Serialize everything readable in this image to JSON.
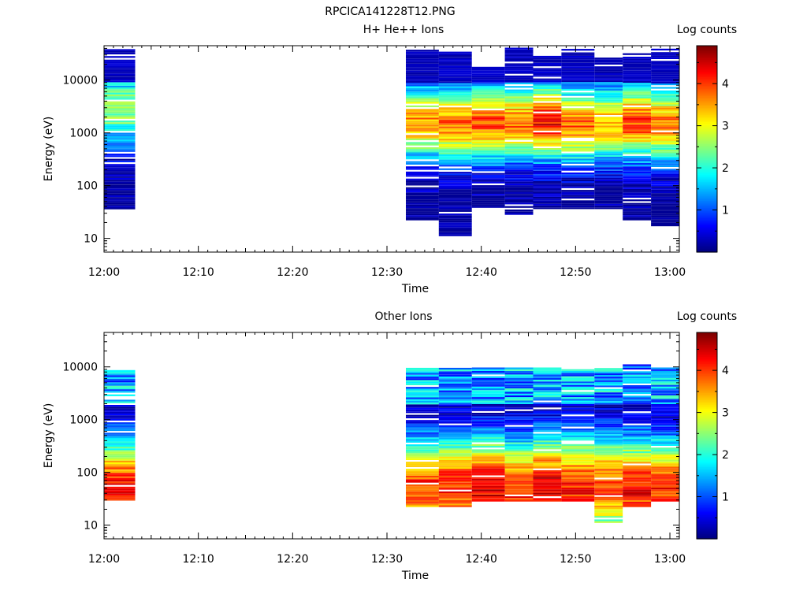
{
  "figure_title": "RPCICA141228T12.PNG",
  "chart_data": [
    {
      "type": "heatmap",
      "title": "H+ He++ Ions",
      "xlabel": "Time",
      "ylabel": "Energy (eV)",
      "colorbar_label": "Log counts",
      "x_ticks": [
        "12:00",
        "12:10",
        "12:20",
        "12:30",
        "12:40",
        "12:50",
        "13:00"
      ],
      "x_range": [
        "12:00",
        "13:01"
      ],
      "y_scale": "log",
      "y_ticks": [
        10,
        100,
        1000,
        10000
      ],
      "y_range": [
        5.5,
        45000
      ],
      "colorbar_ticks": [
        1,
        2,
        3,
        4
      ],
      "colorbar_range": [
        0,
        4.9
      ],
      "colormap": "jet",
      "grid": false,
      "time_bins": [
        {
          "start": "12:00",
          "end": "12:03.3",
          "emin": 33,
          "emax": 40000,
          "peak_energy": 2800,
          "peak_level": 2.6
        },
        {
          "start": "12:32",
          "end": "12:35.5",
          "emin": 22,
          "emax": 40000,
          "peak_energy": 1600,
          "peak_level": 3.6
        },
        {
          "start": "12:35.5",
          "end": "12:39",
          "emin": 11,
          "emax": 35000,
          "peak_energy": 1500,
          "peak_level": 3.8
        },
        {
          "start": "12:39",
          "end": "12:42.5",
          "emin": 38,
          "emax": 18000,
          "peak_energy": 1500,
          "peak_level": 3.9
        },
        {
          "start": "12:42.5",
          "end": "12:45.5",
          "emin": 28,
          "emax": 40000,
          "peak_energy": 1500,
          "peak_level": 3.8
        },
        {
          "start": "12:45.5",
          "end": "12:48.5",
          "emin": 36,
          "emax": 28000,
          "peak_energy": 1600,
          "peak_level": 4.3
        },
        {
          "start": "12:48.5",
          "end": "12:52",
          "emin": 36,
          "emax": 40000,
          "peak_energy": 1400,
          "peak_level": 3.8
        },
        {
          "start": "12:52",
          "end": "12:55",
          "emin": 36,
          "emax": 28000,
          "peak_energy": 1500,
          "peak_level": 3.5
        },
        {
          "start": "12:55",
          "end": "12:58",
          "emin": 22,
          "emax": 32000,
          "peak_energy": 1600,
          "peak_level": 4.0
        },
        {
          "start": "12:58",
          "end": "13:01",
          "emin": 17,
          "emax": 40000,
          "peak_energy": 1500,
          "peak_level": 3.7
        }
      ]
    },
    {
      "type": "heatmap",
      "title": "Other Ions",
      "xlabel": "Time",
      "ylabel": "Energy (eV)",
      "colorbar_label": "Log counts",
      "x_ticks": [
        "12:00",
        "12:10",
        "12:20",
        "12:30",
        "12:40",
        "12:50",
        "13:00"
      ],
      "x_range": [
        "12:00",
        "13:01"
      ],
      "y_scale": "log",
      "y_ticks": [
        10,
        100,
        1000,
        10000
      ],
      "y_range": [
        5.5,
        45000
      ],
      "colorbar_ticks": [
        1,
        2,
        3,
        4
      ],
      "colorbar_range": [
        0,
        4.9
      ],
      "colormap": "jet",
      "grid": false,
      "time_bins": [
        {
          "start": "12:00",
          "end": "12:03.3",
          "emin": 27,
          "emax": 9000,
          "peak_energy": 45,
          "peak_level": 4.4
        },
        {
          "start": "12:32",
          "end": "12:35.5",
          "emin": 22,
          "emax": 9500,
          "peak_energy": 50,
          "peak_level": 4.1
        },
        {
          "start": "12:35.5",
          "end": "12:39",
          "emin": 22,
          "emax": 9500,
          "peak_energy": 50,
          "peak_level": 4.2
        },
        {
          "start": "12:39",
          "end": "12:42.5",
          "emin": 28,
          "emax": 9500,
          "peak_energy": 55,
          "peak_level": 4.5
        },
        {
          "start": "12:42.5",
          "end": "12:45.5",
          "emin": 28,
          "emax": 9500,
          "peak_energy": 50,
          "peak_level": 4.1
        },
        {
          "start": "12:45.5",
          "end": "12:48.5",
          "emin": 28,
          "emax": 9500,
          "peak_energy": 55,
          "peak_level": 4.4
        },
        {
          "start": "12:48.5",
          "end": "12:52",
          "emin": 28,
          "emax": 9000,
          "peak_energy": 55,
          "peak_level": 4.2
        },
        {
          "start": "12:52",
          "end": "12:55",
          "emin": 11,
          "emax": 9500,
          "peak_energy": 55,
          "peak_level": 4.0
        },
        {
          "start": "12:55",
          "end": "12:58",
          "emin": 22,
          "emax": 11000,
          "peak_energy": 50,
          "peak_level": 4.3
        },
        {
          "start": "12:58",
          "end": "13:01",
          "emin": 28,
          "emax": 9500,
          "peak_energy": 50,
          "peak_level": 4.1
        }
      ]
    }
  ]
}
